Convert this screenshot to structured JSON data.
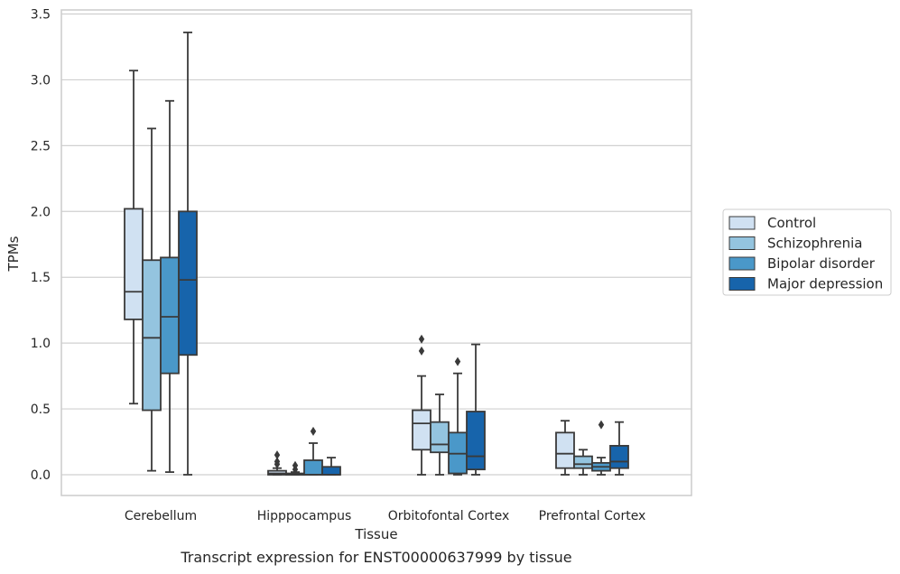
{
  "caption": "Transcript expression for ENST00000637999 by tissue",
  "chart_data": {
    "type": "box",
    "xlabel": "Tissue",
    "ylabel": "TPMs",
    "ylim": [
      -0.16,
      3.55
    ],
    "yticks": [
      "0.0",
      "0.5",
      "1.0",
      "1.5",
      "2.0",
      "2.5",
      "3.0",
      "3.5"
    ],
    "ytick_values": [
      0,
      0.5,
      1.0,
      1.5,
      2.0,
      2.5,
      3.0,
      3.5
    ],
    "grid": "horizontal",
    "legend_position": "right",
    "categories": [
      "Cerebellum",
      "Hipppocampus",
      "Orbitofontal Cortex",
      "Prefrontal Cortex"
    ],
    "series": [
      {
        "name": "Control",
        "color": "#d0e1f2",
        "boxes": [
          {
            "whislo": 0.54,
            "q1": 1.18,
            "med": 1.39,
            "q3": 2.02,
            "whishi": 3.07,
            "fliers": []
          },
          {
            "whislo": 0.0,
            "q1": 0.0,
            "med": 0.01,
            "q3": 0.03,
            "whishi": 0.05,
            "fliers": [
              0.08,
              0.1,
              0.15
            ]
          },
          {
            "whislo": 0.0,
            "q1": 0.19,
            "med": 0.39,
            "q3": 0.49,
            "whishi": 0.75,
            "fliers": [
              0.94,
              1.03
            ]
          },
          {
            "whislo": 0.0,
            "q1": 0.05,
            "med": 0.16,
            "q3": 0.32,
            "whishi": 0.41,
            "fliers": []
          }
        ]
      },
      {
        "name": "Schizophrenia",
        "color": "#94c4df",
        "boxes": [
          {
            "whislo": 0.03,
            "q1": 0.49,
            "med": 1.04,
            "q3": 1.63,
            "whishi": 2.63,
            "fliers": []
          },
          {
            "whislo": 0.0,
            "q1": 0.0,
            "med": 0.0,
            "q3": 0.01,
            "whishi": 0.02,
            "fliers": [
              0.04,
              0.07
            ]
          },
          {
            "whislo": 0.0,
            "q1": 0.17,
            "med": 0.23,
            "q3": 0.4,
            "whishi": 0.61,
            "fliers": []
          },
          {
            "whislo": 0.0,
            "q1": 0.05,
            "med": 0.08,
            "q3": 0.14,
            "whishi": 0.19,
            "fliers": []
          }
        ]
      },
      {
        "name": "Bipolar disorder",
        "color": "#4a98c9",
        "boxes": [
          {
            "whislo": 0.02,
            "q1": 0.77,
            "med": 1.2,
            "q3": 1.65,
            "whishi": 2.84,
            "fliers": []
          },
          {
            "whislo": 0.0,
            "q1": 0.0,
            "med": 0.0,
            "q3": 0.11,
            "whishi": 0.24,
            "fliers": [
              0.33
            ]
          },
          {
            "whislo": 0.0,
            "q1": 0.01,
            "med": 0.16,
            "q3": 0.32,
            "whishi": 0.77,
            "fliers": [
              0.86
            ]
          },
          {
            "whislo": 0.0,
            "q1": 0.03,
            "med": 0.06,
            "q3": 0.09,
            "whishi": 0.13,
            "fliers": [
              0.38
            ]
          }
        ]
      },
      {
        "name": "Major depression",
        "color": "#1764ab",
        "boxes": [
          {
            "whislo": 0.0,
            "q1": 0.91,
            "med": 1.48,
            "q3": 2.0,
            "whishi": 3.36,
            "fliers": []
          },
          {
            "whislo": 0.0,
            "q1": 0.0,
            "med": 0.0,
            "q3": 0.06,
            "whishi": 0.13,
            "fliers": []
          },
          {
            "whislo": 0.0,
            "q1": 0.04,
            "med": 0.14,
            "q3": 0.48,
            "whishi": 0.99,
            "fliers": []
          },
          {
            "whislo": 0.0,
            "q1": 0.05,
            "med": 0.1,
            "q3": 0.22,
            "whishi": 0.4,
            "fliers": []
          }
        ]
      }
    ]
  }
}
